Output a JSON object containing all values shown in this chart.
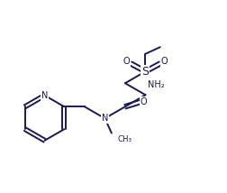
{
  "bg": "#ffffff",
  "lc": "#1a1a4e",
  "lw": 1.4,
  "fs": 7.0,
  "fs_small": 6.2,
  "xlim": [
    0,
    10
  ],
  "ylim": [
    0,
    8.5
  ],
  "figsize": [
    2.52,
    2.14
  ],
  "dpi": 100
}
